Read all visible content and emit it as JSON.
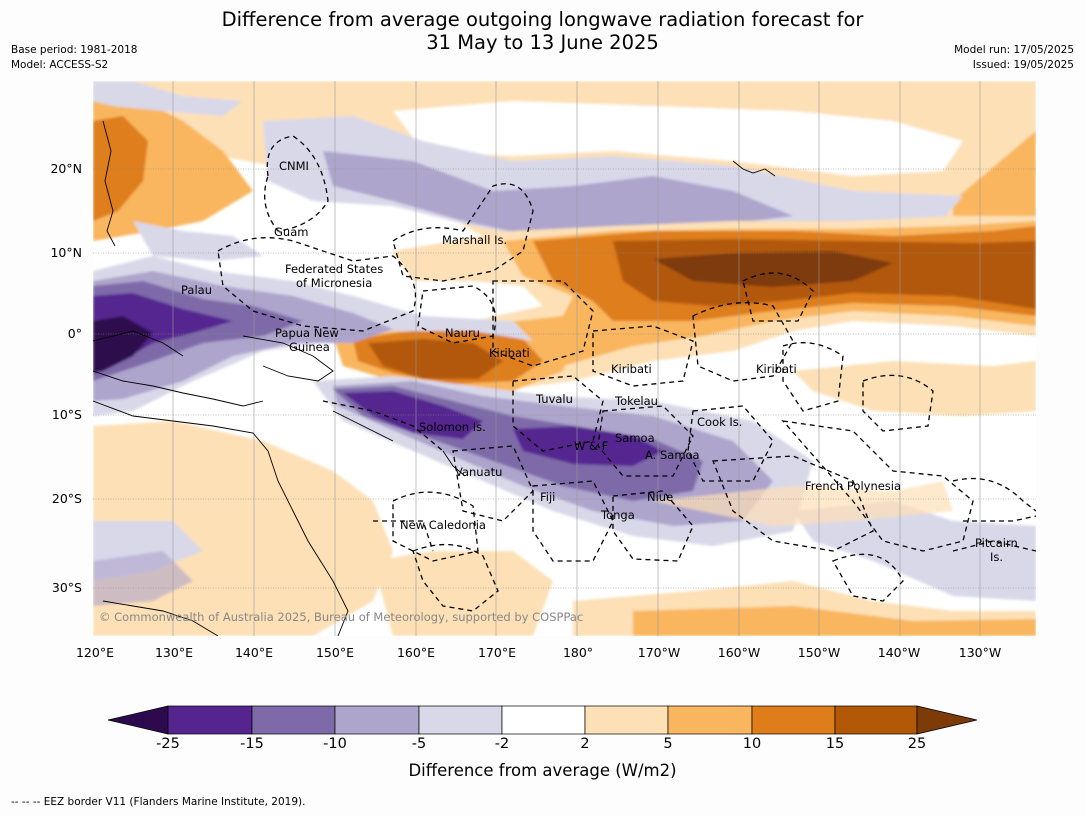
{
  "title_line1": "Difference from average outgoing longwave radiation forecast for",
  "title_line2": "31 May to 13 June 2025",
  "meta_left": {
    "base_period": "Base period: 1981-2018",
    "model": "Model: ACCESS-S2"
  },
  "meta_right": {
    "model_run": "Model run: 17/05/2025",
    "issued": "Issued: 19/05/2025"
  },
  "lat_ticks": [
    "20°N",
    "10°N",
    "0°",
    "10°S",
    "20°S",
    "30°S"
  ],
  "lon_ticks": [
    "120°E",
    "130°E",
    "140°E",
    "150°E",
    "160°E",
    "170°E",
    "180°",
    "170°W",
    "160°W",
    "150°W",
    "140°W",
    "130°W"
  ],
  "places": {
    "cnmi": "CNMI",
    "guam": "Guam",
    "marshall": "Marshall Is.",
    "fsm1": "Federated States",
    "fsm2": "of Micronesia",
    "palau": "Palau",
    "png1": "Papua New",
    "png2": "Guinea",
    "nauru": "Nauru",
    "kiribati_w": "Kiribati",
    "kiribati_c": "Kiribati",
    "kiribati_e": "Kiribati",
    "tuvalu": "Tuvalu",
    "tokelau": "Tokelau",
    "cook": "Cook Is.",
    "solomon": "Solomon Is.",
    "wf": "W & F",
    "samoa": "Samoa",
    "asamoa": "A. Samoa",
    "vanuatu": "Vanuatu",
    "fiji": "Fiji",
    "niue": "Niue",
    "tonga": "Tonga",
    "newcal": "New Caledonia",
    "frpoly": "French Polynesia",
    "pitcairn1": "Pitcairn",
    "pitcairn2": "Is."
  },
  "copyright": "© Commonwealth of Australia 2025, Bureau of Meteorology, supported by COSPPac",
  "colorbar": {
    "ticks": [
      "-25",
      "-15",
      "-10",
      "-5",
      "-2",
      "2",
      "5",
      "10",
      "15",
      "25"
    ],
    "colors": [
      "#2d0a4e",
      "#54258f",
      "#7e6aa9",
      "#ada5cc",
      "#d9d8e9",
      "#ffffff",
      "#fde0b6",
      "#f9b65e",
      "#de7e1a",
      "#b25907",
      "#7e3b0a"
    ],
    "label": "Difference from average (W/m2)"
  },
  "footer": "--  --  -- EEZ border V11 (Flanders Marine Institute, 2019)."
}
